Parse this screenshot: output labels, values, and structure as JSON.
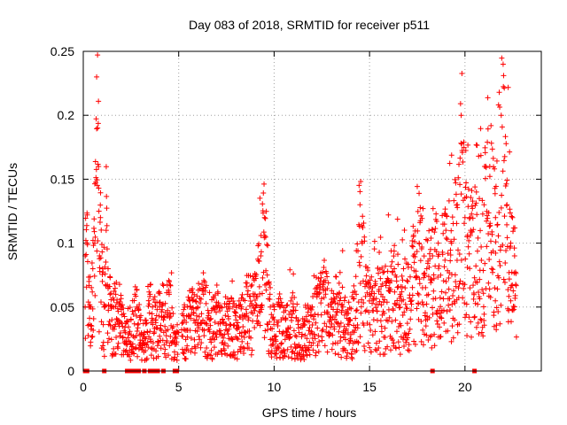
{
  "chart_data": {
    "type": "scatter",
    "title": "Day 083 of 2018, SRMTID for receiver p511",
    "xlabel": "GPS time / hours",
    "ylabel": "SRMTID / TECUs",
    "xlim": [
      0,
      24
    ],
    "ylim": [
      0,
      0.25
    ],
    "xticks": [
      0,
      5,
      10,
      15,
      20
    ],
    "xtick_labels": [
      "0",
      "5",
      "10",
      "15",
      "20"
    ],
    "yticks": [
      0,
      0.05,
      0.1,
      0.15,
      0.2,
      0.25
    ],
    "ytick_labels": [
      "0",
      "0.05",
      "0.1",
      "0.15",
      "0.2",
      "0.25"
    ],
    "grid": true,
    "marker": "+",
    "color": "#ff0000",
    "series": [
      {
        "name": "SRMTID",
        "description": "dense scatter of '+' markers; approx 2500 points sampled every ~30 s",
        "x": [
          0.1,
          0.2,
          0.3,
          0.4,
          0.5,
          0.6,
          0.7,
          0.75,
          0.8,
          0.85,
          0.9,
          1.0,
          1.1,
          1.2,
          1.3,
          1.4,
          1.5,
          1.6,
          1.7,
          1.8,
          2.0,
          2.2,
          2.5,
          2.8,
          3.0,
          3.2,
          3.5,
          3.8,
          4.0,
          4.2,
          4.5,
          4.8,
          5.0,
          5.3,
          5.6,
          6.0,
          6.3,
          6.6,
          7.0,
          7.3,
          7.6,
          8.0,
          8.3,
          8.6,
          9.0,
          9.3,
          9.5,
          9.8,
          10.0,
          10.3,
          10.6,
          11.0,
          11.3,
          11.6,
          12.0,
          12.3,
          12.6,
          13.0,
          13.3,
          13.6,
          14.0,
          14.3,
          14.5,
          14.8,
          15.0,
          15.3,
          15.6,
          16.0,
          16.3,
          16.6,
          17.0,
          17.3,
          17.6,
          18.0,
          18.3,
          18.6,
          19.0,
          19.3,
          19.6,
          19.8,
          20.0,
          20.3,
          20.6,
          21.0,
          21.3,
          21.6,
          21.9,
          22.0,
          22.2,
          22.4,
          22.6
        ],
        "y": [
          0.09,
          0.1,
          0.07,
          0.05,
          0.08,
          0.1,
          0.23,
          0.19,
          0.16,
          0.09,
          0.12,
          0.07,
          0.05,
          0.11,
          0.08,
          0.06,
          0.04,
          0.05,
          0.06,
          0.04,
          0.05,
          0.03,
          0.04,
          0.05,
          0.04,
          0.03,
          0.06,
          0.04,
          0.05,
          0.04,
          0.06,
          0.03,
          0.03,
          0.04,
          0.05,
          0.05,
          0.06,
          0.04,
          0.05,
          0.04,
          0.05,
          0.04,
          0.05,
          0.06,
          0.06,
          0.09,
          0.12,
          0.05,
          0.04,
          0.05,
          0.04,
          0.05,
          0.03,
          0.04,
          0.05,
          0.06,
          0.07,
          0.05,
          0.06,
          0.05,
          0.04,
          0.06,
          0.13,
          0.07,
          0.06,
          0.07,
          0.06,
          0.07,
          0.08,
          0.06,
          0.07,
          0.09,
          0.1,
          0.08,
          0.09,
          0.1,
          0.11,
          0.1,
          0.13,
          0.2,
          0.12,
          0.11,
          0.14,
          0.13,
          0.16,
          0.12,
          0.2,
          0.24,
          0.13,
          0.1,
          0.09
        ]
      }
    ],
    "zero_markers_x": [
      0.1,
      0.2,
      1.1,
      2.3,
      2.4,
      2.5,
      2.7,
      2.9,
      3.2,
      3.5,
      3.6,
      3.8,
      3.9,
      4.2,
      4.8,
      4.9,
      18.3,
      20.5
    ]
  }
}
